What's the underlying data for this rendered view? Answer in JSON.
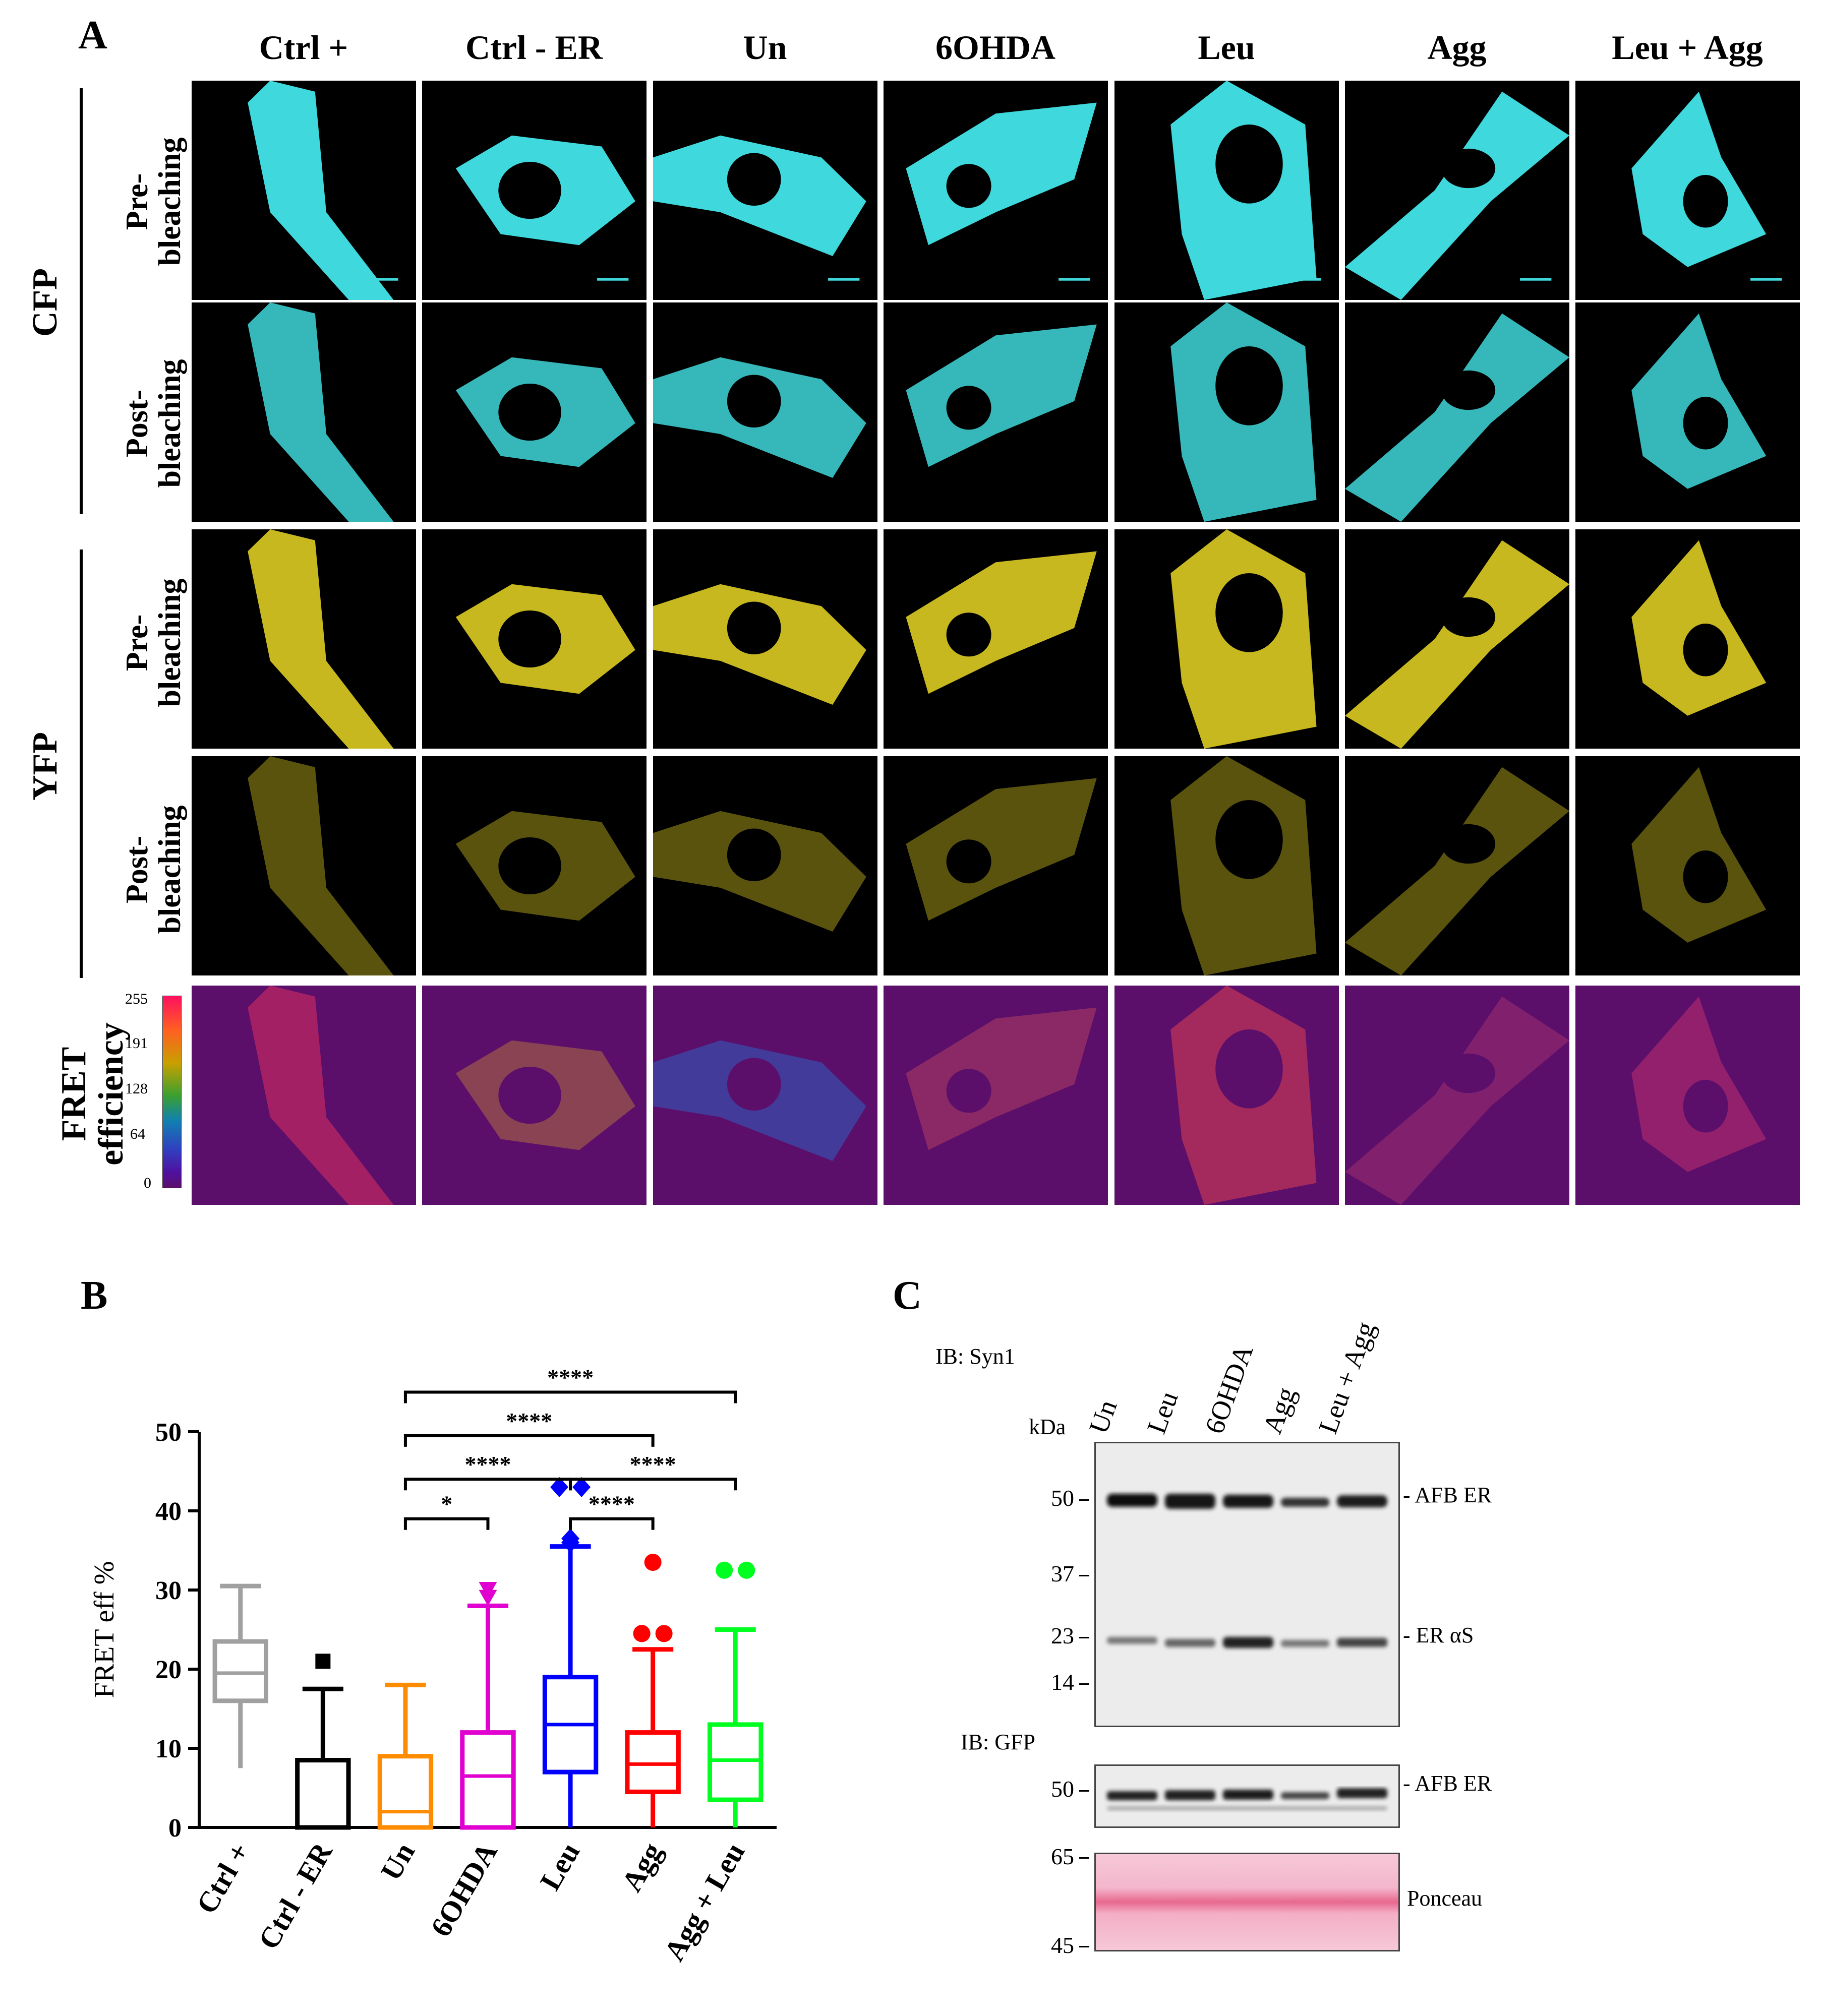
{
  "panels": {
    "a": "A",
    "b": "B",
    "c": "C"
  },
  "panel_a": {
    "columns": [
      "Ctrl +",
      "Ctrl - ER",
      "Un",
      "6OHDA",
      "Leu",
      "Agg",
      "Leu + Agg"
    ],
    "groups": [
      "CFP",
      "YFP"
    ],
    "rows": {
      "pre": [
        "Pre-",
        "bleaching"
      ],
      "post": [
        "Post-",
        "bleaching"
      ],
      "fret": [
        "FRET",
        "efficiency"
      ]
    },
    "colorbar_ticks": [
      "255",
      "191",
      "128",
      "64",
      "0"
    ],
    "colors": {
      "cfp": "#3fd8dc",
      "yfp": "#c8b820",
      "fret_bg": "#5b0f6b"
    }
  },
  "chart_data": {
    "type": "box",
    "ylabel": "FRET eff %",
    "ylim": [
      0,
      50
    ],
    "yticks": [
      0,
      10,
      20,
      30,
      40,
      50
    ],
    "categories": [
      "Ctrl +",
      "Ctrl - ER",
      "Un",
      "6OHDA",
      "Leu",
      "Agg",
      "Agg + Leu"
    ],
    "colors": [
      "#a0a0a0",
      "#000000",
      "#ff8c00",
      "#e000d0",
      "#0000ff",
      "#ff0000",
      "#00ff20"
    ],
    "boxes": [
      {
        "min": 7.5,
        "q1": 16,
        "median": 19.5,
        "q3": 23.5,
        "max": 30.5,
        "outliers": []
      },
      {
        "min": 0,
        "q1": 0,
        "median": 0,
        "q3": 8.5,
        "max": 17.5,
        "outliers": [
          21
        ]
      },
      {
        "min": 0,
        "q1": 0,
        "median": 2,
        "q3": 9,
        "max": 18,
        "outliers": []
      },
      {
        "min": 0,
        "q1": 0,
        "median": 6.5,
        "q3": 12,
        "max": 28,
        "outliers": [
          29,
          30
        ]
      },
      {
        "min": 0,
        "q1": 7,
        "median": 13,
        "q3": 19,
        "max": 35.5,
        "outliers": [
          36,
          36.5,
          43,
          43
        ]
      },
      {
        "min": 0,
        "q1": 4.5,
        "median": 8,
        "q3": 12,
        "max": 22.5,
        "outliers": [
          24.5,
          24.5,
          24.5,
          33.5
        ]
      },
      {
        "min": 0,
        "q1": 3.5,
        "median": 8.5,
        "q3": 13,
        "max": 25,
        "outliers": [
          32.5,
          32.5
        ]
      }
    ],
    "significance": [
      {
        "from": 2,
        "to": 3,
        "y": 39,
        "label": "*"
      },
      {
        "from": 2,
        "to": 4,
        "y": 44,
        "label": "****"
      },
      {
        "from": 4,
        "to": 5,
        "y": 39,
        "label": "****"
      },
      {
        "from": 4,
        "to": 6,
        "y": 44,
        "label": "****"
      },
      {
        "from": 2,
        "to": 5,
        "y": 49.5,
        "label": "****"
      },
      {
        "from": 2,
        "to": 6,
        "y": 55,
        "label": "****"
      }
    ]
  },
  "panel_c": {
    "ib_syn1": "IB: Syn1",
    "ib_gfp": "IB: GFP",
    "kda": "kDa",
    "lanes": [
      "Un",
      "Leu",
      "6OHDA",
      "Agg",
      "Leu + Agg"
    ],
    "mw_top": [
      "50",
      "37",
      "23",
      "14"
    ],
    "mw_gfp": [
      "50"
    ],
    "mw_ponceau": [
      "65",
      "45"
    ],
    "band_labels": {
      "afb_er": "- AFB ER",
      "er_as": "- ER αS",
      "afb_er2": "- AFB ER",
      "ponceau": "Ponceau"
    }
  }
}
